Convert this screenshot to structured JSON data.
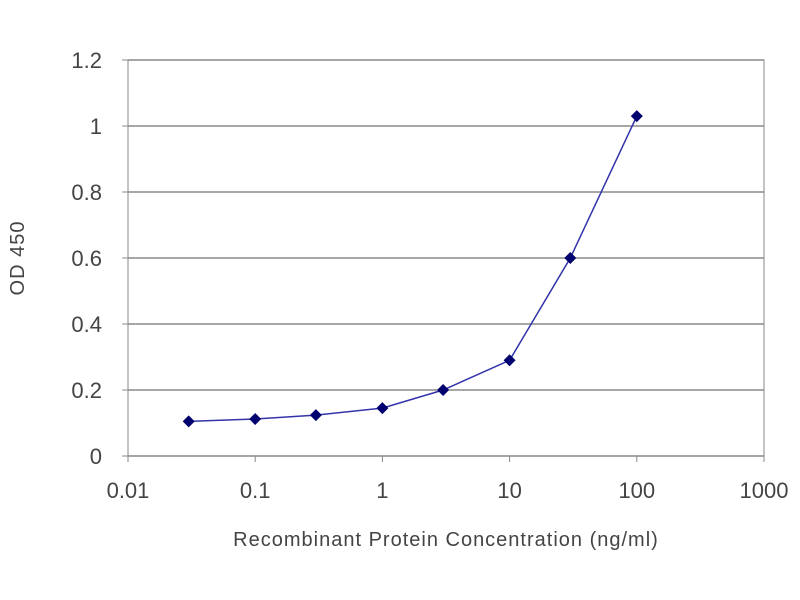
{
  "chart_data": {
    "type": "line",
    "title": "",
    "xlabel": "Recombinant Protein Concentration (ng/ml)",
    "ylabel": "OD 450",
    "x_scale": "log",
    "xlim": [
      0.01,
      1000
    ],
    "ylim": [
      0,
      1.2
    ],
    "x_ticks": [
      "0.01",
      "0.1",
      "1",
      "10",
      "100",
      "1000"
    ],
    "y_ticks": [
      "0",
      "0.2",
      "0.4",
      "0.6",
      "0.8",
      "1",
      "1.2"
    ],
    "grid": "horizontal",
    "legend": "none",
    "series": [
      {
        "color": "#3333aa",
        "marker_color": "#00006e",
        "x": [
          0.03,
          0.1,
          0.3,
          1,
          3,
          10,
          30,
          100
        ],
        "y": [
          0.105,
          0.112,
          0.124,
          0.145,
          0.2,
          0.29,
          0.6,
          1.03
        ]
      }
    ]
  }
}
